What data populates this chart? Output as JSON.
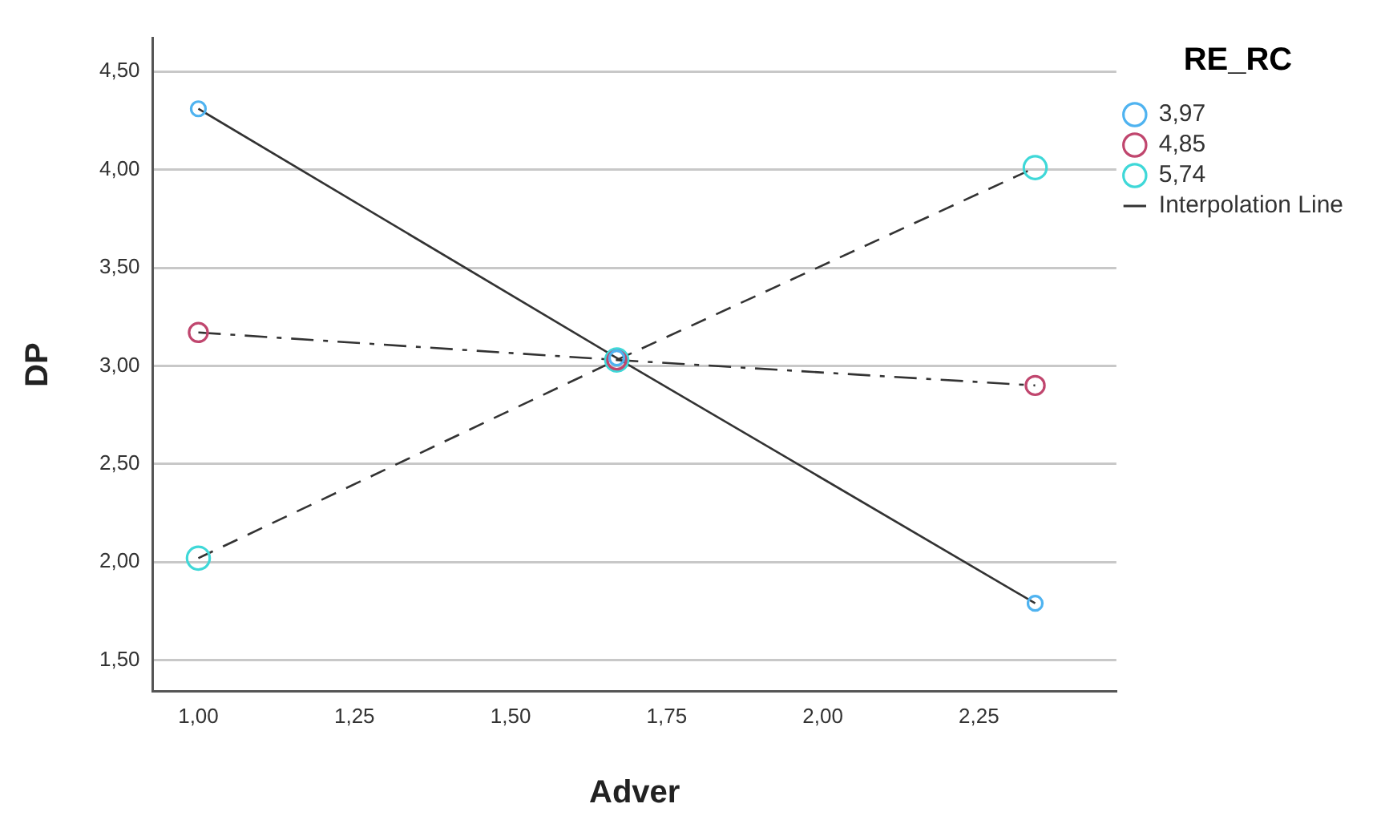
{
  "chart_data": {
    "type": "scatter",
    "xlabel": "Adver",
    "ylabel": "DP",
    "legend_title": "RE_RC",
    "legend": "right",
    "grid": "y",
    "marker": "circle",
    "xlim": [
      0.927,
      2.47
    ],
    "ylim": [
      1.34,
      4.67
    ],
    "xticks": [
      {
        "value": 1,
        "label": "1,00"
      },
      {
        "value": 1.25,
        "label": "1,25"
      },
      {
        "value": 1.5,
        "label": "1,50"
      },
      {
        "value": 1.75,
        "label": "1,75"
      },
      {
        "value": 2,
        "label": "2,00"
      },
      {
        "value": 2.25,
        "label": "2,25"
      }
    ],
    "yticks": [
      {
        "value": 1.5,
        "label": "1,50"
      },
      {
        "value": 2,
        "label": "2,00"
      },
      {
        "value": 2.5,
        "label": "2,50"
      },
      {
        "value": 3,
        "label": "3,00"
      },
      {
        "value": 3.5,
        "label": "3,50"
      },
      {
        "value": 4,
        "label": "4,00"
      },
      {
        "value": 4.5,
        "label": "4,50"
      }
    ],
    "series": [
      {
        "name": "3,97",
        "type": "scatter",
        "color": "#4fb3f0",
        "x": [
          1,
          1.67,
          2.34
        ],
        "values": [
          4.31,
          3.04,
          1.79
        ]
      },
      {
        "name": "4,85",
        "type": "scatter",
        "color": "#c0466e",
        "x": [
          1,
          1.67,
          2.34
        ],
        "values": [
          3.17,
          3.03,
          2.9
        ]
      },
      {
        "name": "5,74",
        "type": "scatter",
        "color": "#3fd8d8",
        "x": [
          1,
          1.67,
          2.34
        ],
        "values": [
          2.02,
          3.03,
          4.01
        ]
      },
      {
        "name": "Interpolation Line",
        "type": "line",
        "color": "#333333",
        "line_style": "solid",
        "marker": "none",
        "x": [
          1,
          1.67,
          2.34
        ],
        "values": [
          4.31,
          3.04,
          1.79
        ]
      },
      {
        "type": "line",
        "color": "#333333",
        "line_style": "dashdot",
        "marker": "none",
        "x": [
          1,
          1.67,
          2.34
        ],
        "values": [
          3.17,
          3.03,
          2.9
        ]
      },
      {
        "type": "line",
        "color": "#333333",
        "line_style": "dashed",
        "marker": "none",
        "x": [
          1,
          1.67,
          2.34
        ],
        "values": [
          2.02,
          3.03,
          4.01
        ]
      }
    ]
  }
}
